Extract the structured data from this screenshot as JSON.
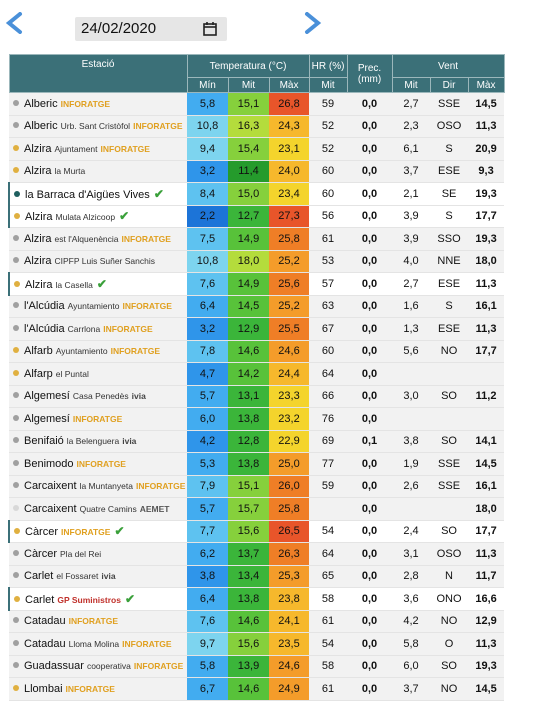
{
  "date": "24/02/2020",
  "header": {
    "station": "Estació",
    "temp": "Temperatura (°C)",
    "hr": "HR (%)",
    "prec": "Prec. (mm)",
    "wind": "Vent",
    "sub": [
      "Mín",
      "Mit",
      "Màx",
      "Mit",
      "Mit",
      "Dir",
      "Màx"
    ]
  },
  "table": {
    "rows": [
      [
        "#a0a0a0",
        "Alberic",
        "",
        "INFORATGE",
        false,
        "5,8",
        "15,1",
        "26,8",
        "59",
        "0,0",
        "2,7",
        "SSE",
        "14,5"
      ],
      [
        "#a0a0a0",
        "Alberic",
        "Urb. Sant Cristòfol",
        "INFORATGE",
        false,
        "10,8",
        "16,3",
        "24,3",
        "52",
        "0,0",
        "2,3",
        "OSO",
        "11,3"
      ],
      [
        "#e0b040",
        "Alzira",
        "Ajuntament",
        "INFORATGE",
        false,
        "9,4",
        "15,4",
        "23,1",
        "52",
        "0,0",
        "6,1",
        "S",
        "20,9"
      ],
      [
        "#e0b040",
        "Alzira",
        "la Murta",
        "",
        false,
        "3,2",
        "11,4",
        "24,0",
        "60",
        "0,0",
        "3,7",
        "ESE",
        "9,3"
      ],
      [
        "#1f5f5f",
        "la Barraca d'Aigües Vives",
        "",
        "",
        true,
        "8,4",
        "15,0",
        "23,4",
        "60",
        "0,0",
        "2,1",
        "SE",
        "19,3"
      ],
      [
        "#e0b040",
        "Alzira",
        "Mulata Alzicoop",
        "",
        true,
        "2,2",
        "12,7",
        "27,3",
        "56",
        "0,0",
        "3,9",
        "S",
        "17,7"
      ],
      [
        "#a0a0a0",
        "Alzira",
        "est l'Alquenència",
        "INFORATGE",
        false,
        "7,5",
        "14,9",
        "25,8",
        "61",
        "0,0",
        "3,9",
        "SSO",
        "19,3"
      ],
      [
        "#a0a0a0",
        "Alzira",
        "CIPFP Luis Suñer Sanchis",
        "",
        false,
        "10,8",
        "18,0",
        "25,2",
        "53",
        "0,0",
        "4,0",
        "NNE",
        "18,0"
      ],
      [
        "#e0b040",
        "Alzira",
        "la Casella",
        "",
        true,
        "7,6",
        "14,9",
        "25,6",
        "57",
        "0,0",
        "2,7",
        "ESE",
        "11,3"
      ],
      [
        "#a0a0a0",
        "l'Alcúdia",
        "Ayuntamiento",
        "INFORATGE",
        false,
        "6,4",
        "14,5",
        "25,2",
        "63",
        "0,0",
        "1,6",
        "S",
        "16,1"
      ],
      [
        "#a0a0a0",
        "l'Alcúdia",
        "Carrlona",
        "INFORATGE",
        false,
        "3,2",
        "12,9",
        "25,5",
        "67",
        "0,0",
        "1,3",
        "ESE",
        "11,3"
      ],
      [
        "#e0b040",
        "Alfarb",
        "Ayuntamiento",
        "INFORATGE",
        false,
        "7,8",
        "14,6",
        "24,6",
        "60",
        "0,0",
        "5,6",
        "NO",
        "17,7"
      ],
      [
        "#e0b040",
        "Alfarp",
        "el Puntal",
        "",
        false,
        "4,7",
        "14,2",
        "24,4",
        "64",
        "0,0",
        null,
        null,
        null
      ],
      [
        "#a0a0a0",
        "Algemesí",
        "Casa Penedès",
        "ivia",
        false,
        "5,7",
        "13,1",
        "23,3",
        "66",
        "0,0",
        "3,0",
        "SO",
        "11,2"
      ],
      [
        "#a0a0a0",
        "Algemesí",
        "",
        "INFORATGE",
        false,
        "6,0",
        "13,8",
        "23,2",
        "76",
        "0,0",
        null,
        null,
        null
      ],
      [
        "#a0a0a0",
        "Benifaió",
        "la Belenguera",
        "ivia",
        false,
        "4,2",
        "12,8",
        "22,9",
        "69",
        "0,1",
        "3,8",
        "SO",
        "14,1"
      ],
      [
        "#a0a0a0",
        "Benimodo",
        "",
        "INFORATGE",
        false,
        "5,3",
        "13,8",
        "25,0",
        "77",
        "0,0",
        "1,9",
        "SSE",
        "14,5"
      ],
      [
        "#a0a0a0",
        "Carcaixent",
        "la Muntanyeta",
        "INFORATGE",
        false,
        "7,9",
        "15,1",
        "26,0",
        "59",
        "0,0",
        "2,6",
        "SSE",
        "16,1"
      ],
      [
        "#d8d8d8",
        "Carcaixent",
        "Quatre Camins",
        "AEMET",
        false,
        "5,7",
        "15,7",
        "25,8",
        null,
        "0,0",
        null,
        null,
        "18,0"
      ],
      [
        "#e0b040",
        "Càrcer",
        "",
        "INFORATGE",
        true,
        "7,7",
        "15,6",
        "26,5",
        "54",
        "0,0",
        "2,4",
        "SO",
        "17,7"
      ],
      [
        "#a0a0a0",
        "Càrcer",
        "Pla del Rei",
        "",
        false,
        "6,2",
        "13,7",
        "26,3",
        "64",
        "0,0",
        "3,1",
        "OSO",
        "11,3"
      ],
      [
        "#a0a0a0",
        "Carlet",
        "el Fossaret",
        "ivia",
        false,
        "3,8",
        "13,4",
        "25,3",
        "65",
        "0,0",
        "2,8",
        "N",
        "11,7"
      ],
      [
        "#e0b040",
        "Carlet",
        "",
        "GP Suministros",
        true,
        "6,4",
        "13,8",
        "23,8",
        "58",
        "0,0",
        "3,6",
        "ONO",
        "16,6"
      ],
      [
        "#a0a0a0",
        "Catadau",
        "",
        "INFORATGE",
        false,
        "7,6",
        "14,6",
        "24,1",
        "61",
        "0,0",
        "4,2",
        "NO",
        "12,9"
      ],
      [
        "#a0a0a0",
        "Catadau",
        "Lloma Molina",
        "INFORATGE",
        false,
        "9,7",
        "15,6",
        "23,5",
        "54",
        "0,0",
        "5,8",
        "O",
        "11,3"
      ],
      [
        "#a0a0a0",
        "Guadassuar",
        "cooperativa",
        "INFORATGE",
        false,
        "5,8",
        "13,9",
        "24,6",
        "58",
        "0,0",
        "6,0",
        "SO",
        "19,3"
      ],
      [
        "#e0b040",
        "Llombai",
        "",
        "INFORATGE",
        false,
        "6,7",
        "14,6",
        "24,9",
        "61",
        "0,0",
        "3,7",
        "NO",
        "14,5"
      ]
    ]
  }
}
